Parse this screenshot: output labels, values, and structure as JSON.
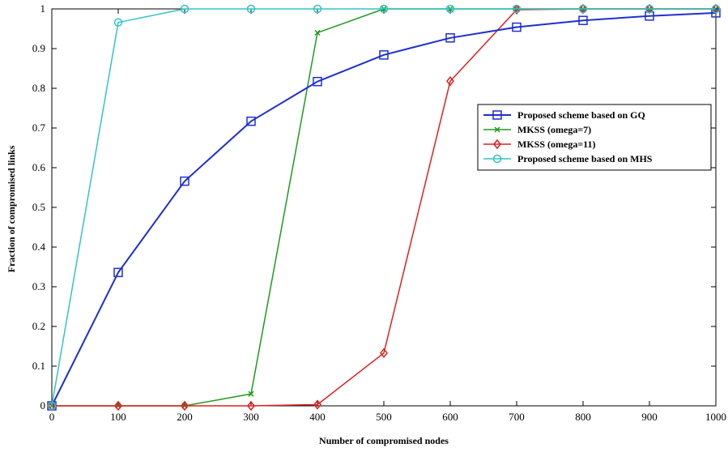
{
  "chart_data": {
    "type": "line",
    "title": "",
    "xlabel": "Number of compromised nodes",
    "ylabel": "Fraction of compromised links",
    "xlim": [
      0,
      1000
    ],
    "ylim": [
      0,
      1
    ],
    "xticks": [
      "0",
      "100",
      "200",
      "300",
      "400",
      "500",
      "600",
      "700",
      "800",
      "900",
      "1000"
    ],
    "yticks": [
      "0",
      "0.1",
      "0.2",
      "0.3",
      "0.4",
      "0.5",
      "0.6",
      "0.7",
      "0.8",
      "0.9",
      "1"
    ],
    "grid": false,
    "legend_position": "right",
    "series": [
      {
        "name": "Proposed scheme based on GQ",
        "color": "#1f2fd0",
        "marker": "square",
        "x": [
          0,
          100,
          200,
          300,
          400,
          500,
          600,
          700,
          800,
          900,
          1000
        ],
        "y": [
          0,
          0.336,
          0.566,
          0.717,
          0.817,
          0.884,
          0.927,
          0.954,
          0.971,
          0.982,
          0.99
        ]
      },
      {
        "name": "MKSS (omega=7)",
        "color": "#1e9b1e",
        "marker": "x",
        "x": [
          0,
          100,
          200,
          300,
          400,
          500,
          600,
          700,
          800,
          900,
          1000
        ],
        "y": [
          0,
          0,
          0,
          0.03,
          0.94,
          1,
          1,
          1,
          1,
          1,
          1
        ]
      },
      {
        "name": "MKSS (omega=11)",
        "color": "#e02020",
        "marker": "diamond",
        "x": [
          0,
          100,
          200,
          300,
          400,
          500,
          600,
          700,
          800,
          900,
          1000
        ],
        "y": [
          0,
          0,
          0,
          0,
          0.003,
          0.133,
          0.818,
          0.998,
          1,
          1,
          1
        ]
      },
      {
        "name": "Proposed scheme based on MHS",
        "color": "#33c3c3",
        "marker": "circle",
        "x": [
          0,
          100,
          200,
          300,
          400,
          500,
          600,
          700,
          800,
          900,
          1000
        ],
        "y": [
          0,
          0.966,
          1,
          1,
          1,
          1,
          1,
          1,
          1,
          1,
          1
        ]
      }
    ]
  }
}
